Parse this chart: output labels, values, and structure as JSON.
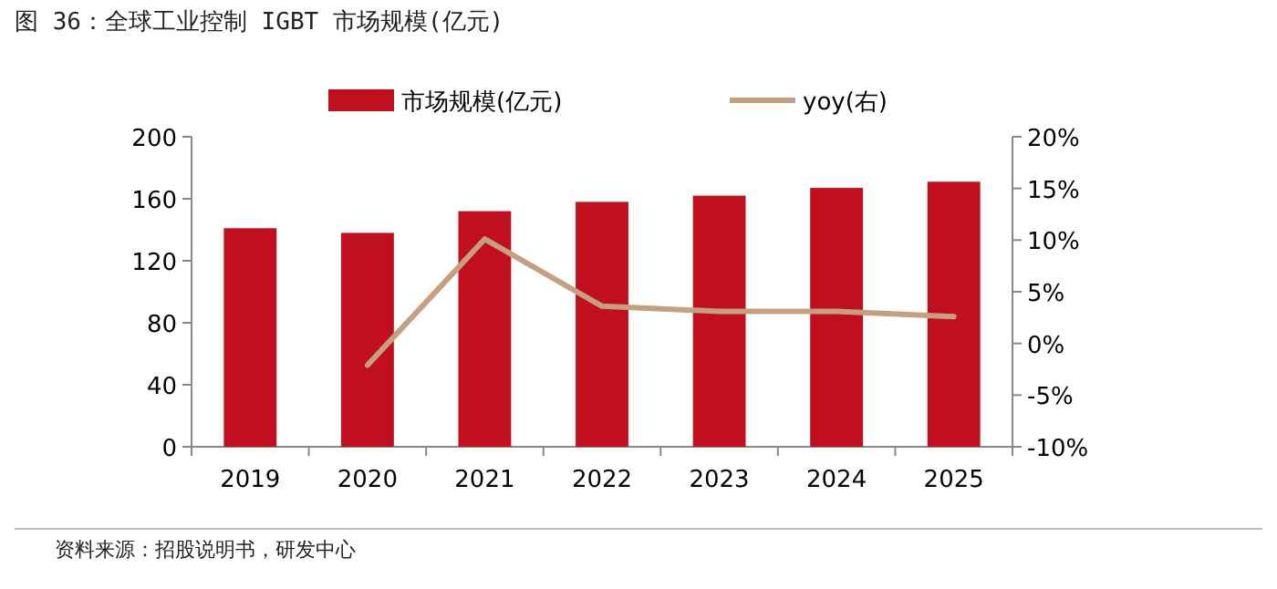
{
  "chart_data": {
    "type": "bar",
    "title": "图 36：全球工业控制 IGBT 市场规模(亿元)",
    "categories": [
      "2019",
      "2020",
      "2021",
      "2022",
      "2023",
      "2024",
      "2025"
    ],
    "series": [
      {
        "name": "市场规模(亿元)",
        "color": "#c00f1e",
        "values": [
          141,
          138,
          152,
          158,
          162,
          167,
          171
        ]
      },
      {
        "name": "yoy(右)",
        "type": "line",
        "axis": "y2",
        "color": "#c4a080",
        "values": [
          null,
          -2.1,
          10.1,
          3.6,
          3.1,
          3.1,
          2.6
        ]
      }
    ],
    "ylim": [
      0,
      200
    ],
    "yticks": [
      0,
      40,
      80,
      120,
      160,
      200
    ],
    "y2lim": [
      -10,
      20
    ],
    "y2ticks": [
      {
        "value": -10,
        "label": "-10%"
      },
      {
        "value": -5,
        "label": "-5%"
      },
      {
        "value": 0,
        "label": "0%"
      },
      {
        "value": 5,
        "label": "5%"
      },
      {
        "value": 10,
        "label": "10%"
      },
      {
        "value": 15,
        "label": "15%"
      },
      {
        "value": 20,
        "label": "20%"
      }
    ],
    "legend": "top",
    "grid": false,
    "marker": "none",
    "line_style": "solid",
    "annotations": [
      "资料来源：招股说明书，研发中心"
    ]
  }
}
